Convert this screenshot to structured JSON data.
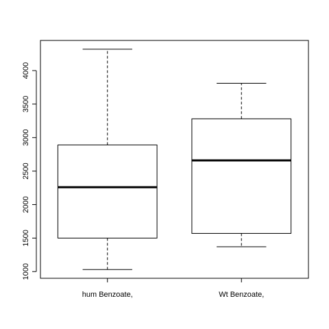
{
  "chart_data": {
    "type": "box",
    "title": "",
    "xlabel": "",
    "ylabel": "",
    "ylim": [
      900,
      4450
    ],
    "yticks": [
      1000,
      1500,
      2000,
      2500,
      3000,
      3500,
      4000
    ],
    "grid": false,
    "categories": [
      "hum Benzoate,",
      "Wt Benzoate,"
    ],
    "boxes": [
      {
        "category": "hum Benzoate,",
        "whisker_low": 1030,
        "q1": 1500,
        "median": 2260,
        "q3": 2890,
        "whisker_high": 4320
      },
      {
        "category": "Wt Benzoate,",
        "whisker_low": 1370,
        "q1": 1570,
        "median": 2660,
        "q3": 3280,
        "whisker_high": 3810
      }
    ]
  }
}
